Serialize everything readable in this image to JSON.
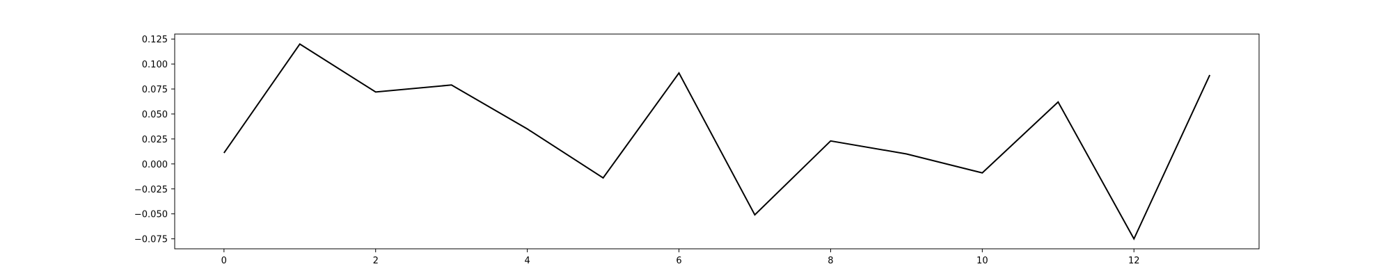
{
  "chart_data": {
    "type": "line",
    "title": "",
    "xlabel": "",
    "ylabel": "",
    "x": [
      0,
      1,
      2,
      3,
      4,
      5,
      6,
      7,
      8,
      9,
      10,
      11,
      12,
      13
    ],
    "series": [
      {
        "name": "",
        "color": "#000000",
        "values": [
          0.011,
          0.12,
          0.072,
          0.079,
          0.035,
          -0.014,
          0.091,
          -0.051,
          0.023,
          0.01,
          -0.009,
          0.062,
          -0.075,
          0.089
        ]
      }
    ],
    "xlim": [
      -0.65,
      13.65
    ],
    "ylim": [
      -0.085,
      0.13
    ],
    "xticks": [
      0,
      2,
      4,
      6,
      8,
      10,
      12
    ],
    "xtick_labels": [
      "0",
      "2",
      "4",
      "6",
      "8",
      "10",
      "12"
    ],
    "yticks": [
      0.125,
      0.1,
      0.075,
      0.05,
      0.025,
      0.0,
      -0.025,
      -0.05,
      -0.075
    ],
    "ytick_labels": [
      "0.125",
      "0.100",
      "0.075",
      "0.050",
      "0.025",
      "0.000",
      "−0.025",
      "−0.050",
      "−0.075"
    ],
    "grid": false,
    "legend": "none"
  }
}
